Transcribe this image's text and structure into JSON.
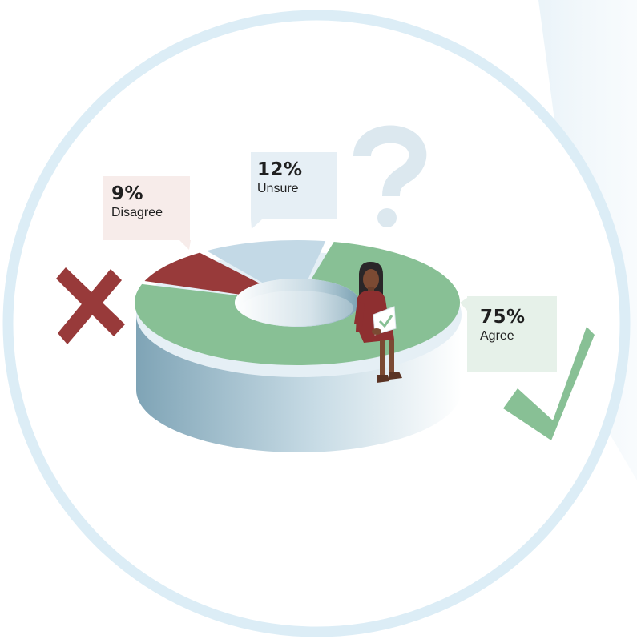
{
  "chart_data": {
    "type": "pie",
    "variant": "3d-donut",
    "slices": [
      {
        "key": "agree",
        "label": "Agree",
        "value": 75,
        "display": "75%",
        "color": "#88c095"
      },
      {
        "key": "unsure",
        "label": "Unsure",
        "value": 12,
        "display": "12%",
        "color": "#c3d9e6"
      },
      {
        "key": "disagree",
        "label": "Disagree",
        "value": 9,
        "display": "9%",
        "color": "#983a3a"
      }
    ]
  },
  "colors": {
    "agree": "#88c095",
    "unsure": "#c3d9e6",
    "disagree": "#983a3a",
    "ring_border": "#dcedf6",
    "side": "#7aa1b3"
  },
  "icons": [
    "cross-mark-icon",
    "question-mark-icon",
    "check-mark-icon",
    "person-with-laptop-illustration"
  ]
}
